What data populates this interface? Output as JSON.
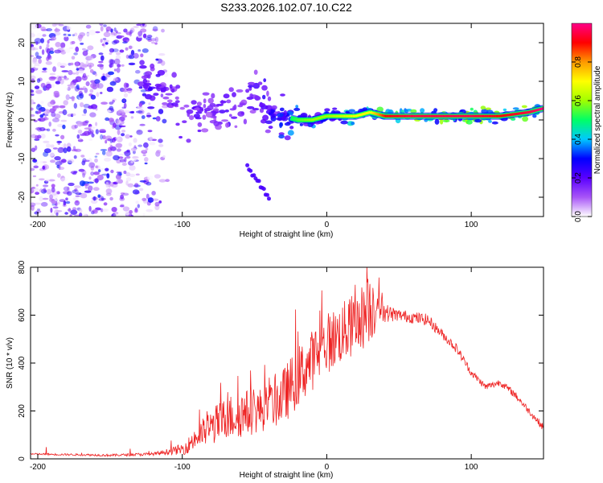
{
  "title": "S233.2026.102.07.10.C22",
  "colors": {
    "trace": "#ee2222",
    "scatter": "#8a2be2",
    "line_band": "#e8342c",
    "axis": "#000000"
  },
  "chart_data": [
    {
      "type": "heatmap",
      "name": "spectrogram",
      "xlabel": "Height of straight line (km)",
      "ylabel": "Frequency (Hz)",
      "xlim": [
        -205,
        150
      ],
      "ylim": [
        -25,
        25
      ],
      "x_ticks": [
        -200,
        -100,
        0,
        100
      ],
      "x_tick_labels": [
        "-200",
        "-100",
        "0",
        "100"
      ],
      "y_ticks": [
        -20,
        -10,
        0,
        10,
        20
      ],
      "y_tick_labels": [
        "-20",
        "-10",
        "0",
        "10",
        "20"
      ],
      "colorbar": {
        "label": "Normalized spectral amplitude",
        "range": [
          0,
          1
        ],
        "ticks": [
          0,
          0.2,
          0.4,
          0.6,
          0.8
        ],
        "tick_labels": [
          "0.0",
          "0.2",
          "0.4",
          "0.6",
          "0.8"
        ],
        "stops": [
          "#ffffff",
          "#a855f7",
          "#5a00ff",
          "#0000ff",
          "#00c8ff",
          "#00ff66",
          "#a0ff00",
          "#ffff00",
          "#ff9900",
          "#ff0000",
          "#ff0088"
        ]
      },
      "ridge": {
        "x": [
          -130,
          -115,
          -100,
          -90,
          -80,
          -70,
          -60,
          -50,
          -40,
          -30,
          -20,
          -10,
          0,
          10,
          20,
          30,
          40,
          60,
          80,
          100,
          120,
          140,
          150
        ],
        "y": [
          8,
          9,
          2,
          3,
          2,
          2,
          4,
          6,
          2,
          1,
          0,
          0,
          1,
          1,
          1,
          2,
          1,
          1,
          1,
          1,
          1,
          2,
          3
        ],
        "amplitude": [
          0.35,
          0.3,
          0.25,
          0.3,
          0.25,
          0.3,
          0.3,
          0.3,
          0.35,
          0.45,
          0.55,
          0.6,
          0.6,
          0.65,
          0.7,
          0.7,
          0.9,
          0.95,
          0.95,
          0.95,
          0.9,
          0.95,
          1.0
        ]
      },
      "diffuse_region": {
        "x": [
          -205,
          -110
        ],
        "amplitude": 0.15
      },
      "tail": {
        "x": [
          -55,
          -40
        ],
        "y": [
          -12,
          -20
        ]
      }
    },
    {
      "type": "line",
      "name": "snr",
      "xlabel": "Height of straight line (km)",
      "ylabel": "SNR (10 * v/v)",
      "xlim": [
        -205,
        150
      ],
      "ylim": [
        0,
        800
      ],
      "x_ticks": [
        -200,
        -100,
        0,
        100
      ],
      "x_tick_labels": [
        "-200",
        "-100",
        "0",
        "100"
      ],
      "y_ticks": [
        0,
        200,
        400,
        600,
        800
      ],
      "y_tick_labels": [
        "0",
        "200",
        "400",
        "600",
        "800"
      ],
      "envelope_x": [
        -205,
        -180,
        -150,
        -120,
        -110,
        -100,
        -90,
        -80,
        -70,
        -60,
        -50,
        -40,
        -30,
        -20,
        -10,
        0,
        10,
        20,
        30,
        35,
        40,
        50,
        60,
        70,
        80,
        90,
        100,
        110,
        120,
        130,
        140,
        150
      ],
      "envelope_y": [
        20,
        18,
        15,
        20,
        30,
        40,
        80,
        120,
        150,
        170,
        180,
        200,
        240,
        320,
        390,
        460,
        500,
        540,
        600,
        640,
        610,
        600,
        590,
        580,
        520,
        460,
        360,
        300,
        320,
        270,
        200,
        130
      ],
      "noise_y": [
        5,
        5,
        6,
        8,
        15,
        30,
        60,
        90,
        110,
        120,
        110,
        110,
        140,
        150,
        150,
        150,
        150,
        160,
        170,
        160,
        40,
        25,
        25,
        25,
        20,
        20,
        15,
        15,
        15,
        15,
        15,
        15
      ]
    }
  ]
}
